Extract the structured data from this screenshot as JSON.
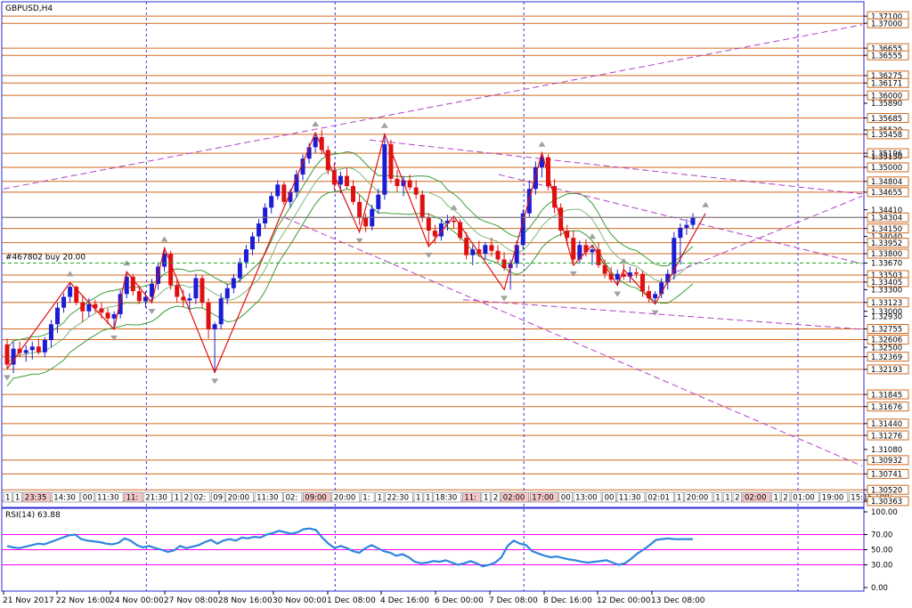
{
  "window": {
    "title": "GBPUSD,H4"
  },
  "order_label": "#467802 buy 20.00",
  "rsi_label": "RSI(14) 63.88",
  "colors": {
    "background": "#ffffff",
    "frame": "#2b2bd0",
    "bull": "#1c1cd6",
    "bear": "#e01010",
    "level_line": "#d2691e",
    "zigzag": "#e01010",
    "trendline": "#b040c8",
    "envelope": "#3a9a3a",
    "order_line": "#22aa22",
    "rsi_line": "#2e86de",
    "rsi_level": "#ff00ff",
    "current_price_line": "#708090"
  },
  "chart_data": {
    "type": "candlestick",
    "symbol": "GBPUSD",
    "timeframe": "H4",
    "ylim": [
      1.303,
      1.3725
    ],
    "price_axis_ticks": [
      "1.37100",
      "1.37000",
      "1.36655",
      "1.36555",
      "1.36275",
      "1.36171",
      "1.36000",
      "1.35890",
      "1.35685",
      "1.35520",
      "1.35458",
      "1.35196",
      "1.35150",
      "1.35000",
      "1.34804",
      "1.34655",
      "1.34410",
      "1.34304",
      "1.34150",
      "1.34040",
      "1.33952",
      "1.33800",
      "1.33670",
      "1.33503",
      "1.33405",
      "1.33300",
      "1.33123",
      "1.33000",
      "1.32930",
      "1.32755",
      "1.32606",
      "1.32500",
      "1.32369",
      "1.32193",
      "1.31845",
      "1.31676",
      "1.31440",
      "1.31276",
      "1.31080",
      "1.30932",
      "1.30741",
      "1.30520",
      "1.30363"
    ],
    "horizontal_levels": [
      1.371,
      1.37,
      1.36655,
      1.36555,
      1.36275,
      1.36171,
      1.36,
      1.35685,
      1.35458,
      1.35196,
      1.35,
      1.34804,
      1.34655,
      1.34304,
      1.3415,
      1.33952,
      1.338,
      1.33503,
      1.33405,
      1.33123,
      1.32755,
      1.32606,
      1.32369,
      1.32193,
      1.31845,
      1.31676,
      1.3144,
      1.31276,
      1.30932,
      1.30741,
      1.3052,
      1.30363
    ],
    "current_price": 1.34304,
    "order_price": 1.3367,
    "x_labels": [
      "21 Nov 2017",
      "22 Nov 16:00",
      "24 Nov 00:00",
      "27 Nov 08:00",
      "28 Nov 16:00",
      "30 Nov 00:00",
      "1 Dec 08:00",
      "4 Dec 16:00",
      "6 Dec 00:00",
      "7 Dec 08:00",
      "8 Dec 16:00",
      "12 Dec 00:00",
      "13 Dec 08:00"
    ],
    "time_tags": [
      "1",
      "1",
      "23:35",
      "14:30",
      "00",
      "11:30",
      "11:",
      "21:30",
      "1",
      "2",
      "02:",
      "09",
      "20:00",
      "11:30",
      "02:",
      "09:00",
      "20:00",
      "1:",
      "1",
      "22:30",
      "1",
      "1",
      "18:30",
      "11:",
      "1",
      "2",
      "02:00",
      "17:00",
      "00",
      "13:00",
      "00",
      "11:30",
      "02:01",
      "1",
      "20:00",
      "1",
      "1",
      "2",
      "02:00",
      "1",
      "2",
      "01:00",
      "19:00",
      "15:15",
      "00"
    ],
    "candles_ohlc": [
      [
        1.3254,
        1.3262,
        1.322,
        1.3226
      ],
      [
        1.3226,
        1.3258,
        1.3214,
        1.3248
      ],
      [
        1.3248,
        1.3258,
        1.3236,
        1.3242
      ],
      [
        1.3242,
        1.3253,
        1.323,
        1.3246
      ],
      [
        1.3246,
        1.3258,
        1.3233,
        1.3251
      ],
      [
        1.3251,
        1.3262,
        1.324,
        1.3243
      ],
      [
        1.3243,
        1.3264,
        1.3236,
        1.326
      ],
      [
        1.326,
        1.3288,
        1.325,
        1.3282
      ],
      [
        1.3282,
        1.3312,
        1.327,
        1.3305
      ],
      [
        1.3305,
        1.3325,
        1.3298,
        1.332
      ],
      [
        1.332,
        1.334,
        1.3312,
        1.3334
      ],
      [
        1.3334,
        1.3336,
        1.3308,
        1.3312
      ],
      [
        1.3312,
        1.3322,
        1.3285,
        1.33
      ],
      [
        1.33,
        1.3318,
        1.3292,
        1.331
      ],
      [
        1.331,
        1.3316,
        1.3298,
        1.3304
      ],
      [
        1.3304,
        1.3312,
        1.329,
        1.3298
      ],
      [
        1.3298,
        1.3304,
        1.3282,
        1.329
      ],
      [
        1.329,
        1.33,
        1.3275,
        1.3296
      ],
      [
        1.3296,
        1.333,
        1.329,
        1.3324
      ],
      [
        1.3324,
        1.3355,
        1.3318,
        1.3348
      ],
      [
        1.3348,
        1.3352,
        1.3322,
        1.3328
      ],
      [
        1.3328,
        1.3336,
        1.331,
        1.3314
      ],
      [
        1.3314,
        1.3328,
        1.3305,
        1.332
      ],
      [
        1.332,
        1.3345,
        1.3312,
        1.3338
      ],
      [
        1.3338,
        1.3368,
        1.333,
        1.3362
      ],
      [
        1.3362,
        1.3388,
        1.3355,
        1.338
      ],
      [
        1.338,
        1.3384,
        1.333,
        1.3336
      ],
      [
        1.3336,
        1.3344,
        1.3312,
        1.332
      ],
      [
        1.332,
        1.333,
        1.3306,
        1.3315
      ],
      [
        1.3315,
        1.3325,
        1.33,
        1.3318
      ],
      [
        1.3318,
        1.3352,
        1.331,
        1.3346
      ],
      [
        1.3346,
        1.335,
        1.3305,
        1.3312
      ],
      [
        1.3312,
        1.3318,
        1.3262,
        1.3275
      ],
      [
        1.3275,
        1.3285,
        1.3215,
        1.3282
      ],
      [
        1.3282,
        1.3325,
        1.3275,
        1.3318
      ],
      [
        1.3318,
        1.3338,
        1.331,
        1.3332
      ],
      [
        1.3332,
        1.3352,
        1.3325,
        1.3346
      ],
      [
        1.3346,
        1.3374,
        1.334,
        1.3368
      ],
      [
        1.3368,
        1.3392,
        1.336,
        1.3386
      ],
      [
        1.3386,
        1.341,
        1.3378,
        1.3404
      ],
      [
        1.3404,
        1.3428,
        1.3396,
        1.3422
      ],
      [
        1.3422,
        1.345,
        1.3415,
        1.3444
      ],
      [
        1.3444,
        1.3466,
        1.3436,
        1.346
      ],
      [
        1.346,
        1.3482,
        1.3455,
        1.3476
      ],
      [
        1.3476,
        1.348,
        1.3448,
        1.3452
      ],
      [
        1.3452,
        1.347,
        1.3444,
        1.3466
      ],
      [
        1.3466,
        1.3496,
        1.3458,
        1.349
      ],
      [
        1.349,
        1.3518,
        1.3482,
        1.3512
      ],
      [
        1.3512,
        1.3534,
        1.3505,
        1.3528
      ],
      [
        1.3528,
        1.3548,
        1.352,
        1.3542
      ],
      [
        1.3542,
        1.3552,
        1.3518,
        1.3524
      ],
      [
        1.3524,
        1.353,
        1.349,
        1.3496
      ],
      [
        1.3496,
        1.3506,
        1.3468,
        1.3476
      ],
      [
        1.3476,
        1.3494,
        1.3464,
        1.3488
      ],
      [
        1.3488,
        1.35,
        1.347,
        1.3474
      ],
      [
        1.3474,
        1.3482,
        1.3448,
        1.3452
      ],
      [
        1.3452,
        1.3462,
        1.342,
        1.343
      ],
      [
        1.343,
        1.3436,
        1.341,
        1.3418
      ],
      [
        1.3418,
        1.3448,
        1.3412,
        1.3442
      ],
      [
        1.3442,
        1.347,
        1.3436,
        1.3462
      ],
      [
        1.3462,
        1.3546,
        1.3455,
        1.3532
      ],
      [
        1.3532,
        1.3538,
        1.3478,
        1.3484
      ],
      [
        1.3484,
        1.3496,
        1.3466,
        1.3474
      ],
      [
        1.3474,
        1.3488,
        1.346,
        1.3482
      ],
      [
        1.3482,
        1.349,
        1.3468,
        1.3472
      ],
      [
        1.3472,
        1.3482,
        1.3456,
        1.3462
      ],
      [
        1.3462,
        1.3468,
        1.3424,
        1.343
      ],
      [
        1.343,
        1.3436,
        1.339,
        1.3412
      ],
      [
        1.3412,
        1.342,
        1.3394,
        1.3404
      ],
      [
        1.3404,
        1.3428,
        1.3398,
        1.3422
      ],
      [
        1.3422,
        1.3434,
        1.3412,
        1.3426
      ],
      [
        1.3426,
        1.3432,
        1.3415,
        1.3424
      ],
      [
        1.3424,
        1.3428,
        1.3398,
        1.3402
      ],
      [
        1.3402,
        1.341,
        1.3372,
        1.3378
      ],
      [
        1.3378,
        1.3392,
        1.3364,
        1.3386
      ],
      [
        1.3386,
        1.3398,
        1.3376,
        1.338
      ],
      [
        1.338,
        1.3396,
        1.3372,
        1.3392
      ],
      [
        1.3392,
        1.3402,
        1.3376,
        1.3384
      ],
      [
        1.3384,
        1.3392,
        1.3366,
        1.3372
      ],
      [
        1.3372,
        1.3382,
        1.3356,
        1.336
      ],
      [
        1.336,
        1.3372,
        1.333,
        1.3366
      ],
      [
        1.3366,
        1.3398,
        1.336,
        1.3392
      ],
      [
        1.3392,
        1.3442,
        1.3386,
        1.3436
      ],
      [
        1.3436,
        1.3482,
        1.343,
        1.347
      ],
      [
        1.347,
        1.3508,
        1.3462,
        1.35
      ],
      [
        1.35,
        1.352,
        1.3486,
        1.3514
      ],
      [
        1.3514,
        1.3518,
        1.3468,
        1.3474
      ],
      [
        1.3474,
        1.3484,
        1.3436,
        1.3444
      ],
      [
        1.3444,
        1.345,
        1.3404,
        1.3412
      ],
      [
        1.3412,
        1.342,
        1.3392,
        1.3402
      ],
      [
        1.3402,
        1.3412,
        1.3364,
        1.3372
      ],
      [
        1.3372,
        1.3398,
        1.3366,
        1.3392
      ],
      [
        1.3392,
        1.34,
        1.3376,
        1.3382
      ],
      [
        1.3382,
        1.3392,
        1.3364,
        1.3386
      ],
      [
        1.3386,
        1.3396,
        1.336,
        1.3364
      ],
      [
        1.3364,
        1.3372,
        1.3346,
        1.3352
      ],
      [
        1.3352,
        1.3362,
        1.334,
        1.3344
      ],
      [
        1.3344,
        1.3358,
        1.3336,
        1.3352
      ],
      [
        1.3352,
        1.3366,
        1.3344,
        1.3348
      ],
      [
        1.3348,
        1.3362,
        1.334,
        1.3354
      ],
      [
        1.3354,
        1.336,
        1.3346,
        1.3352
      ],
      [
        1.3352,
        1.3356,
        1.332,
        1.3328
      ],
      [
        1.3328,
        1.3336,
        1.3312,
        1.3318
      ],
      [
        1.3318,
        1.3328,
        1.331,
        1.3324
      ],
      [
        1.3324,
        1.3346,
        1.3318,
        1.334
      ],
      [
        1.334,
        1.3358,
        1.333,
        1.3352
      ],
      [
        1.3352,
        1.341,
        1.3344,
        1.3402
      ],
      [
        1.3402,
        1.3422,
        1.3365,
        1.3416
      ],
      [
        1.3416,
        1.3428,
        1.3406,
        1.342
      ],
      [
        1.342,
        1.3436,
        1.3414,
        1.343
      ]
    ],
    "zigzag": [
      [
        0,
        1.322
      ],
      [
        10,
        1.334
      ],
      [
        17,
        1.3275
      ],
      [
        19,
        1.3355
      ],
      [
        23,
        1.3312
      ],
      [
        25,
        1.3388
      ],
      [
        33,
        1.3215
      ],
      [
        49,
        1.3548
      ],
      [
        56,
        1.341
      ],
      [
        60,
        1.3546
      ],
      [
        67,
        1.339
      ],
      [
        71,
        1.3432
      ],
      [
        79,
        1.333
      ],
      [
        85,
        1.352
      ],
      [
        90,
        1.3364
      ],
      [
        93,
        1.3392
      ],
      [
        97,
        1.3336
      ],
      [
        98,
        1.3358
      ],
      [
        103,
        1.331
      ],
      [
        111,
        1.3436
      ]
    ],
    "rsi": {
      "period": 14,
      "value": 63.88,
      "ylim": [
        0,
        100
      ],
      "ticks": [
        "100.00",
        "70.00",
        "50.00",
        "30.00",
        "0.00"
      ],
      "levels": [
        70,
        50,
        30
      ],
      "values": [
        55,
        53,
        52,
        54,
        56,
        58,
        57,
        60,
        63,
        66,
        69,
        70,
        64,
        62,
        61,
        60,
        58,
        57,
        59,
        65,
        62,
        56,
        53,
        55,
        52,
        50,
        47,
        49,
        55,
        52,
        54,
        56,
        60,
        63,
        58,
        62,
        64,
        62,
        66,
        65,
        67,
        66,
        70,
        72,
        75,
        73,
        71,
        73,
        77,
        78,
        76,
        66,
        58,
        52,
        55,
        52,
        48,
        46,
        52,
        56,
        52,
        48,
        46,
        42,
        44,
        40,
        34,
        32,
        33,
        35,
        34,
        36,
        33,
        30,
        32,
        35,
        32,
        28,
        30,
        33,
        40,
        55,
        62,
        58,
        56,
        48,
        45,
        42,
        40,
        41,
        39,
        37,
        36,
        34,
        33,
        34,
        35,
        36,
        33,
        30,
        32,
        38,
        45,
        50,
        56,
        63,
        64,
        65,
        64,
        63.88,
        64,
        64
      ]
    }
  }
}
